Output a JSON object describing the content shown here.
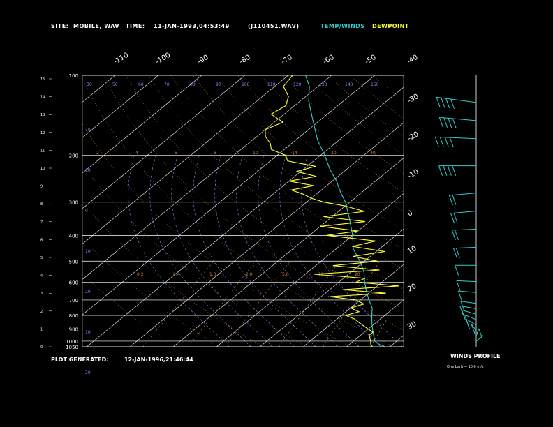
{
  "header": {
    "site_label": "SITE:",
    "site_value": "MOBILE, WAV",
    "time_label": "TIME:",
    "time_value": "11-JAN-1993,04:53:49",
    "file_id": "(J110451.WAV)",
    "temp_winds_label": "TEMP/WINDS",
    "dewpoint_label": "DEWPOINT"
  },
  "footer": {
    "generated_label": "PLOT GENERATED:",
    "generated_value": "12-JAN-1996,21:46:44",
    "winds_profile_label": "WINDS PROFILE",
    "winds_profile_note": "One barb = 10.0 m/s"
  },
  "colors": {
    "background": "#000000",
    "temperature": "#33cccc",
    "dewpoint": "#ffff33",
    "grid": "#ffffff",
    "mixing_ratio": "#cc8844",
    "dry_adiabat": "#cc6633",
    "moist_adiabat": "#8888ff"
  },
  "chart_data": {
    "type": "line",
    "subtype": "skew-T log-P sounding",
    "pressure_levels_hpa": [
      "100",
      "200",
      "300",
      "400",
      "500",
      "600",
      "700",
      "800",
      "900",
      "1000",
      "1050"
    ],
    "pressure_ticks": [
      100,
      200,
      300,
      400,
      500,
      600,
      700,
      800,
      900,
      1000,
      1050
    ],
    "height_ticks_km": [
      "15",
      "14",
      "13",
      "12",
      "11",
      "10",
      "9",
      "8",
      "7",
      "6",
      "5",
      "4",
      "3",
      "2",
      "1",
      "0"
    ],
    "temp_ticks_top": [
      "-110",
      "-100",
      "-90",
      "-80",
      "-70",
      "-60",
      "-50",
      "-40"
    ],
    "temp_ticks_right": [
      "-30",
      "-20",
      "-10",
      "0",
      "10",
      "20",
      "30"
    ],
    "theta_labels_top": [
      "30",
      "50",
      "60",
      "70",
      "80",
      "90",
      "100",
      "110",
      "120",
      "130",
      "140",
      "150"
    ],
    "theta_labels_left": [
      "70",
      "10",
      "0",
      "10",
      "20",
      "10",
      "20"
    ],
    "mixing_ratio_labels_200": [
      "2",
      "4",
      "5",
      "6",
      "10",
      "14",
      "20",
      "40"
    ],
    "mixing_ratio_labels_600": [
      "0.2",
      "0.4",
      "1.0",
      "2.0",
      "5.0",
      "10",
      "20"
    ],
    "ylim_hpa": [
      1050,
      100
    ],
    "xlim_c": [
      -40,
      40
    ],
    "series": [
      {
        "name": "TEMP/WINDS",
        "pressure": [
          1050,
          1030,
          1000,
          975,
          950,
          925,
          900,
          875,
          850,
          800,
          750,
          700,
          650,
          600,
          550,
          500,
          450,
          400,
          350,
          300,
          275,
          250,
          225,
          200,
          175,
          150,
          125,
          110,
          100
        ],
        "temperature": [
          29,
          27,
          25,
          24,
          23,
          22,
          21,
          20,
          19,
          17,
          15,
          12,
          9,
          6,
          3,
          -1,
          -6,
          -10,
          -15,
          -21,
          -25,
          -29,
          -34,
          -39,
          -45,
          -51,
          -58,
          -62,
          -66
        ]
      },
      {
        "name": "DEWPOINT",
        "pressure": [
          1050,
          1030,
          1000,
          975,
          950,
          925,
          900,
          875,
          850,
          825,
          800,
          775,
          750,
          725,
          700,
          680,
          660,
          640,
          620,
          600,
          580,
          560,
          540,
          520,
          500,
          480,
          460,
          440,
          420,
          400,
          385,
          370,
          355,
          340,
          325,
          310,
          300,
          290,
          280,
          270,
          260,
          250,
          240,
          230,
          220,
          210,
          200,
          190,
          180,
          170,
          160,
          150,
          140,
          130,
          120,
          110,
          100
        ],
        "dewpoint": [
          26,
          25,
          24,
          23,
          22,
          22,
          20,
          18,
          16,
          14,
          11,
          13,
          10,
          12,
          9,
          2,
          14,
          3,
          15,
          4,
          5,
          -8,
          6,
          -6,
          3,
          -4,
          2,
          -7,
          -3,
          -16,
          -10,
          -20,
          -11,
          -22,
          -14,
          -20,
          -26,
          -30,
          -33,
          -37,
          -33,
          -40,
          -35,
          -41,
          -38,
          -46,
          -48,
          -53,
          -55,
          -58,
          -60,
          -58,
          -63,
          -62,
          -64,
          -68,
          -69
        ]
      }
    ],
    "winds_profile": {
      "units": "m/s",
      "height_km": [
        0.3,
        0.6,
        0.9,
        1.2,
        1.5,
        1.8,
        2.1,
        2.4,
        3.0,
        3.6,
        4.5,
        5.5,
        6.5,
        7.5,
        8.5,
        10.0,
        11.5,
        12.5,
        13.5
      ],
      "speed_ms": [
        4,
        6,
        5,
        7,
        6,
        8,
        9,
        7,
        10,
        12,
        14,
        16,
        18,
        20,
        22,
        35,
        40,
        35,
        40
      ],
      "direction_deg": [
        150,
        170,
        200,
        220,
        230,
        240,
        250,
        255,
        260,
        265,
        270,
        275,
        275,
        280,
        280,
        270,
        265,
        260,
        255
      ]
    }
  }
}
